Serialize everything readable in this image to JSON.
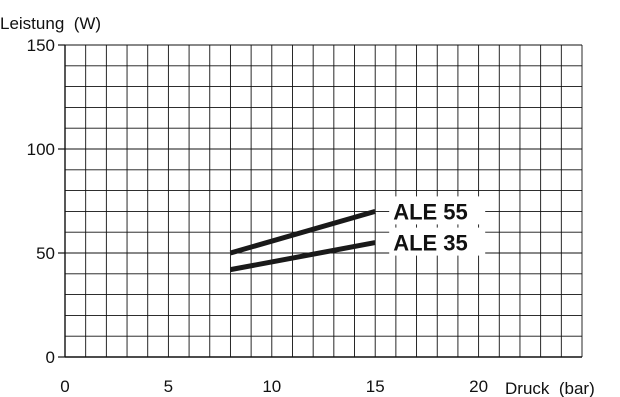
{
  "chart_data": {
    "type": "line",
    "ylabel": "Leistung  (W)",
    "xlabel": "Druck  (bar)",
    "xlim": [
      0,
      25
    ],
    "ylim": [
      0,
      150
    ],
    "x_ticks": [
      "0",
      "5",
      "10",
      "15",
      "20"
    ],
    "y_ticks": [
      "0",
      "50",
      "100",
      "150"
    ],
    "grid": true,
    "series": [
      {
        "name": "ALE 55",
        "x": [
          8,
          15
        ],
        "y": [
          50,
          70
        ]
      },
      {
        "name": "ALE 35",
        "x": [
          8,
          15
        ],
        "y": [
          42,
          55
        ]
      }
    ],
    "colors": {
      "line": "#1a1a1a",
      "grid": "#111111"
    }
  }
}
